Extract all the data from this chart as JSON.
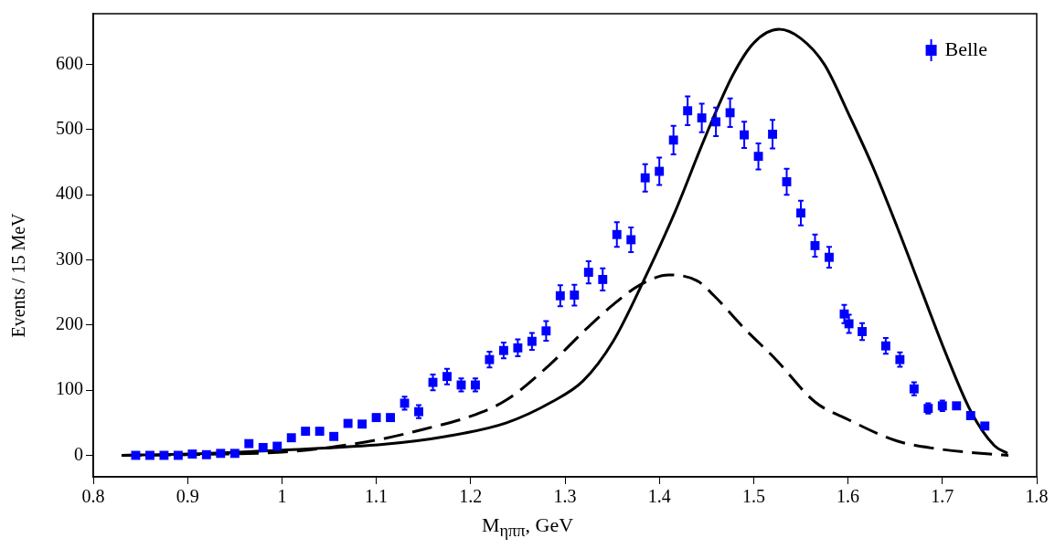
{
  "chart_data": {
    "type": "scatter",
    "xlabel": "M$_{ηππ}$, GeV",
    "ylabel": "Events / 15 MeV",
    "xlim": [
      0.8,
      1.8
    ],
    "xticks": [
      {
        "value": 0.8,
        "label": "0.8"
      },
      {
        "value": 0.9,
        "label": "0.9"
      },
      1,
      1.1,
      1.2,
      1.3,
      1.4,
      1.5,
      1.6,
      1.7,
      1.8
    ],
    "ylim": [
      -33,
      678
    ],
    "yticks": [
      0,
      100,
      200,
      300,
      400,
      500,
      600
    ],
    "grid": false,
    "legend": "top right",
    "series": [
      {
        "name": "Belle",
        "marker": "square",
        "color": "#0000ff",
        "x": [
          0.845,
          0.86,
          0.875,
          0.89,
          0.905,
          0.92,
          0.935,
          0.95,
          0.965,
          0.98,
          0.995,
          1.01,
          1.025,
          1.04,
          1.055,
          1.07,
          1.085,
          1.1,
          1.115,
          1.13,
          1.145,
          1.16,
          1.175,
          1.19,
          1.205,
          1.22,
          1.235,
          1.25,
          1.265,
          1.28,
          1.295,
          1.31,
          1.325,
          1.34,
          1.355,
          1.37,
          1.385,
          1.4,
          1.415,
          1.43,
          1.445,
          1.46,
          1.475,
          1.49,
          1.505,
          1.52,
          1.535,
          1.55,
          1.565,
          1.58,
          1.596,
          1.601,
          1.615,
          1.64,
          1.655,
          1.67,
          1.685,
          1.7,
          1.715,
          1.73,
          1.745
        ],
        "values": [
          0,
          0,
          0,
          0,
          2,
          1,
          3,
          3,
          18,
          12,
          14,
          27,
          37,
          37,
          29,
          49,
          48,
          58,
          58,
          80,
          67,
          112,
          121,
          108,
          108,
          147,
          161,
          165,
          175,
          191,
          245,
          246,
          281,
          270,
          339,
          331,
          426,
          436,
          484,
          529,
          518,
          512,
          526,
          492,
          459,
          493,
          420,
          372,
          322,
          304,
          217,
          202,
          190,
          168,
          147,
          102,
          72,
          76,
          76,
          61,
          45
        ],
        "errors": [
          null,
          null,
          null,
          null,
          null,
          null,
          null,
          null,
          null,
          null,
          null,
          null,
          null,
          null,
          null,
          null,
          null,
          null,
          null,
          10,
          10,
          12,
          12,
          10,
          10,
          12,
          12,
          13,
          13,
          15,
          16,
          16,
          17,
          17,
          19,
          19,
          21,
          21,
          22,
          22,
          22,
          22,
          22,
          20,
          20,
          22,
          20,
          19,
          17,
          16,
          14,
          14,
          13,
          12,
          11,
          10,
          8,
          8,
          null,
          null,
          null
        ]
      },
      {
        "type": "line",
        "marker": "none",
        "line_style": "solid",
        "color": "#000000",
        "x": [
          0.83,
          0.9,
          1.0,
          1.109,
          1.174,
          1.238,
          1.286,
          1.319,
          1.351,
          1.383,
          1.417,
          1.449,
          1.478,
          1.5,
          1.527,
          1.55,
          1.575,
          1.601,
          1.626,
          1.652,
          1.679,
          1.701,
          1.73,
          1.755,
          1.769
        ],
        "values": [
          0,
          2,
          8,
          17,
          29,
          50,
          82,
          114,
          175,
          267,
          375,
          490,
          584,
          633,
          654,
          640,
          600,
          523,
          444,
          351,
          249,
          166,
          68,
          15,
          3
        ]
      },
      {
        "type": "line",
        "marker": "none",
        "line_style": "dashed",
        "color": "#000000",
        "x": [
          0.83,
          0.9,
          1.0,
          1.05,
          1.109,
          1.15,
          1.2,
          1.238,
          1.283,
          1.319,
          1.35,
          1.38,
          1.41,
          1.44,
          1.458,
          1.49,
          1.523,
          1.565,
          1.6,
          1.652,
          1.7,
          1.75,
          1.77
        ],
        "values": [
          0,
          1,
          5,
          12,
          26,
          40,
          60,
          85,
          138,
          189,
          230,
          262,
          277,
          268,
          245,
          195,
          148,
          82,
          55,
          22,
          9,
          2,
          0
        ]
      }
    ]
  }
}
